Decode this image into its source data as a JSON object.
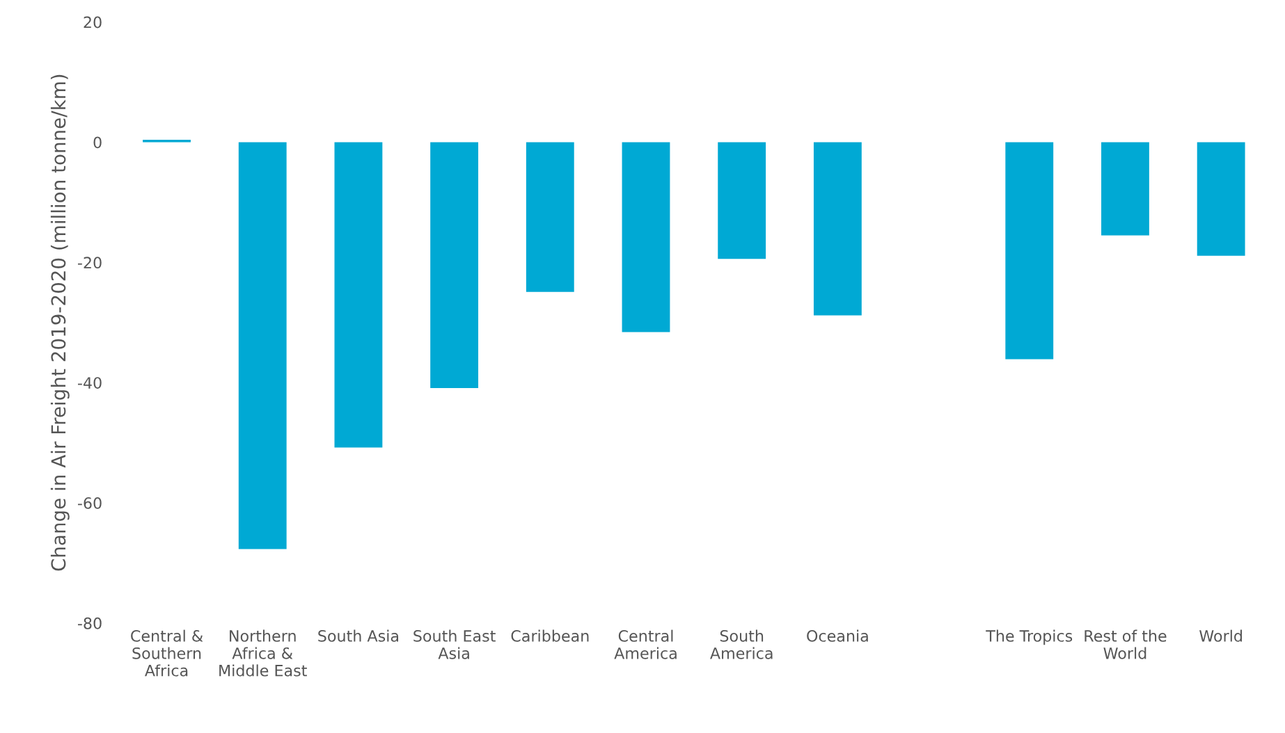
{
  "chart_data": {
    "type": "bar",
    "ylabel": "Change in Air Freight 2019-2020 (million tonne/km)",
    "categories": [
      "Central & Southern Africa",
      "Northern Africa & Middle East",
      "South Asia",
      "South East Asia",
      "Caribbean",
      "Central America",
      "South America",
      "Oceania",
      null,
      "The Tropics",
      "Rest of the World",
      "World"
    ],
    "values": [
      0.4,
      -67.7,
      -50.8,
      -40.9,
      -24.9,
      -31.6,
      -19.4,
      -28.8,
      null,
      -36.1,
      -15.5,
      -18.9
    ],
    "color": "#00a9d4",
    "ylim": [
      -80,
      20
    ],
    "yticks": [
      -80,
      -60,
      -40,
      -20,
      0,
      20
    ],
    "grid": false
  }
}
